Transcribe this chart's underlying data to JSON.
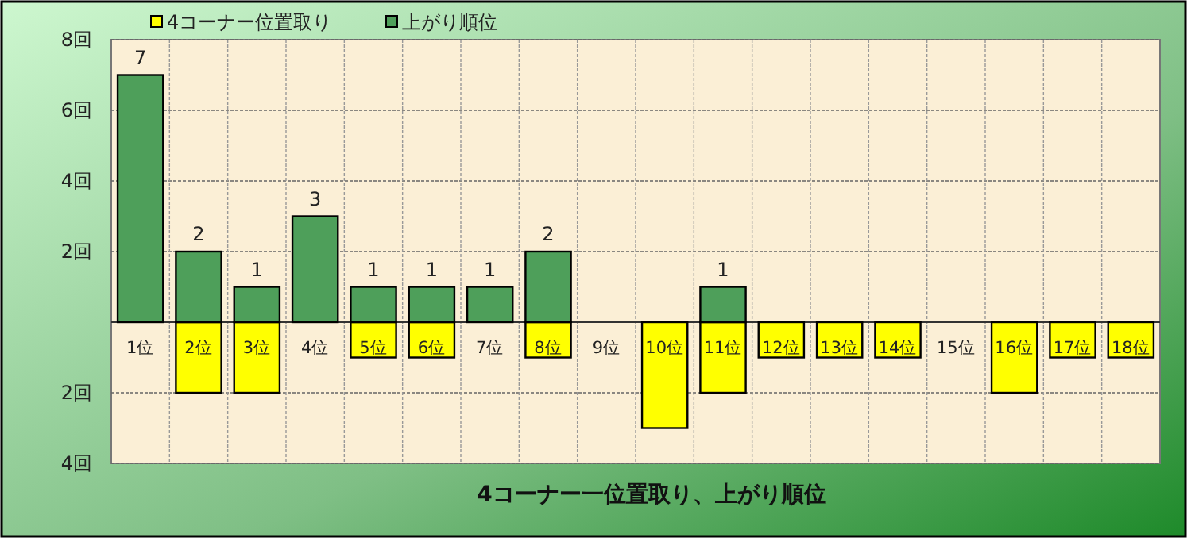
{
  "chart_data": {
    "type": "bar",
    "title": "4コーナー一位置取り、上がり順位",
    "categories": [
      "1位",
      "2位",
      "3位",
      "4位",
      "5位",
      "6位",
      "7位",
      "8位",
      "9位",
      "10位",
      "11位",
      "12位",
      "13位",
      "14位",
      "15位",
      "16位",
      "17位",
      "18位"
    ],
    "series": [
      {
        "name": "4コーナー位置取り",
        "color": "#ffff00",
        "values": [
          0,
          -2,
          -2,
          0,
          -1,
          -1,
          0,
          -1,
          0,
          -3,
          -2,
          -1,
          -1,
          -1,
          0,
          -2,
          -1,
          -1
        ]
      },
      {
        "name": "上がり順位",
        "color": "#4e9f5a",
        "values": [
          7,
          2,
          1,
          3,
          1,
          1,
          1,
          2,
          0,
          0,
          1,
          0,
          0,
          0,
          0,
          0,
          0,
          0
        ],
        "value_labels": [
          "7",
          "2",
          "1",
          "3",
          "1",
          "1",
          "1",
          "2",
          null,
          null,
          "1",
          null,
          null,
          null,
          null,
          null,
          null,
          null
        ]
      }
    ],
    "stacked": true,
    "ylim": [
      -4,
      8
    ],
    "yticks": [
      {
        "value": -4,
        "label": "4回"
      },
      {
        "value": -2,
        "label": "2回"
      },
      {
        "value": 0,
        "label": null
      },
      {
        "value": 2,
        "label": "2回"
      },
      {
        "value": 4,
        "label": "4回"
      },
      {
        "value": 6,
        "label": "6回"
      },
      {
        "value": 8,
        "label": "8回"
      }
    ],
    "grid": true,
    "legend": "top"
  }
}
